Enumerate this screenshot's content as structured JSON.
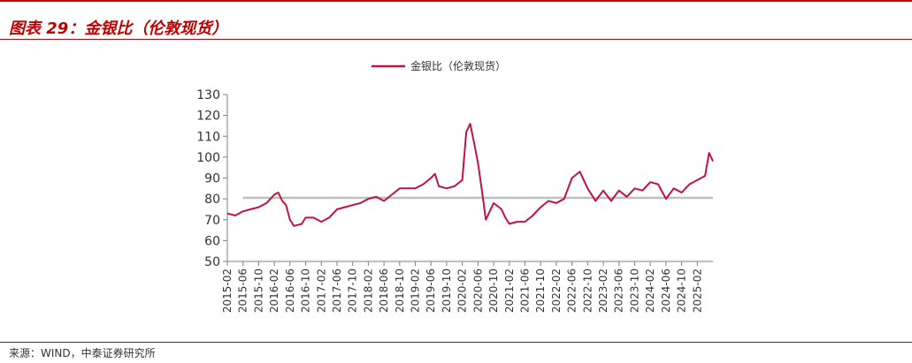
{
  "header": {
    "title": "图表 29：金银比（伦敦现货）"
  },
  "footer": {
    "source": "来源：WIND，中泰证券研究所"
  },
  "colors": {
    "accent": "#c00000",
    "series": "#c0143c",
    "reference": "#bfbfbf"
  },
  "chart_data": {
    "type": "line",
    "title": "",
    "xlabel": "",
    "ylabel": "",
    "ylim": [
      50,
      130
    ],
    "yticks": [
      50,
      60,
      70,
      80,
      90,
      100,
      110,
      120,
      130
    ],
    "grid": false,
    "legend_position": "top-center",
    "xlim": [
      "2015-02",
      "2025-06"
    ],
    "xticks": [
      "2015-02",
      "2015-06",
      "2015-10",
      "2016-02",
      "2016-06",
      "2016-10",
      "2017-02",
      "2017-06",
      "2017-10",
      "2018-02",
      "2018-06",
      "2018-10",
      "2019-02",
      "2019-06",
      "2019-10",
      "2020-02",
      "2020-06",
      "2020-10",
      "2021-02",
      "2021-06",
      "2021-10",
      "2022-02",
      "2022-06",
      "2022-10",
      "2023-02",
      "2023-06",
      "2023-10",
      "2024-02",
      "2024-06",
      "2024-10",
      "2025-02"
    ],
    "reference_line": {
      "y": 80.5
    },
    "series": [
      {
        "name": "金银比（伦敦现货）",
        "points": [
          [
            "2015-02",
            73
          ],
          [
            "2015-04",
            72
          ],
          [
            "2015-06",
            74
          ],
          [
            "2015-08",
            75
          ],
          [
            "2015-10",
            76
          ],
          [
            "2015-12",
            78
          ],
          [
            "2016-02",
            82
          ],
          [
            "2016-03",
            83
          ],
          [
            "2016-04",
            79
          ],
          [
            "2016-05",
            77
          ],
          [
            "2016-06",
            70
          ],
          [
            "2016-07",
            67
          ],
          [
            "2016-09",
            68
          ],
          [
            "2016-10",
            71
          ],
          [
            "2016-12",
            71
          ],
          [
            "2017-02",
            69
          ],
          [
            "2017-04",
            71
          ],
          [
            "2017-06",
            75
          ],
          [
            "2017-08",
            76
          ],
          [
            "2017-10",
            77
          ],
          [
            "2017-12",
            78
          ],
          [
            "2018-02",
            80
          ],
          [
            "2018-04",
            81
          ],
          [
            "2018-06",
            79
          ],
          [
            "2018-08",
            82
          ],
          [
            "2018-10",
            85
          ],
          [
            "2018-12",
            85
          ],
          [
            "2019-02",
            85
          ],
          [
            "2019-04",
            87
          ],
          [
            "2019-06",
            90
          ],
          [
            "2019-07",
            92
          ],
          [
            "2019-08",
            86
          ],
          [
            "2019-10",
            85
          ],
          [
            "2019-12",
            86
          ],
          [
            "2020-02",
            89
          ],
          [
            "2020-03",
            112
          ],
          [
            "2020-04",
            116
          ],
          [
            "2020-05",
            107
          ],
          [
            "2020-06",
            97
          ],
          [
            "2020-07",
            84
          ],
          [
            "2020-08",
            70
          ],
          [
            "2020-10",
            78
          ],
          [
            "2020-12",
            75
          ],
          [
            "2021-01",
            71
          ],
          [
            "2021-02",
            68
          ],
          [
            "2021-04",
            69
          ],
          [
            "2021-06",
            69
          ],
          [
            "2021-08",
            72
          ],
          [
            "2021-10",
            76
          ],
          [
            "2021-12",
            79
          ],
          [
            "2022-02",
            78
          ],
          [
            "2022-04",
            80
          ],
          [
            "2022-06",
            90
          ],
          [
            "2022-08",
            93
          ],
          [
            "2022-10",
            85
          ],
          [
            "2022-12",
            79
          ],
          [
            "2023-02",
            84
          ],
          [
            "2023-04",
            79
          ],
          [
            "2023-06",
            84
          ],
          [
            "2023-08",
            81
          ],
          [
            "2023-10",
            85
          ],
          [
            "2023-12",
            84
          ],
          [
            "2024-02",
            88
          ],
          [
            "2024-04",
            87
          ],
          [
            "2024-06",
            80
          ],
          [
            "2024-08",
            85
          ],
          [
            "2024-10",
            83
          ],
          [
            "2024-12",
            87
          ],
          [
            "2025-02",
            89
          ],
          [
            "2025-04",
            91
          ],
          [
            "2025-05",
            102
          ],
          [
            "2025-06",
            98
          ]
        ]
      }
    ]
  }
}
